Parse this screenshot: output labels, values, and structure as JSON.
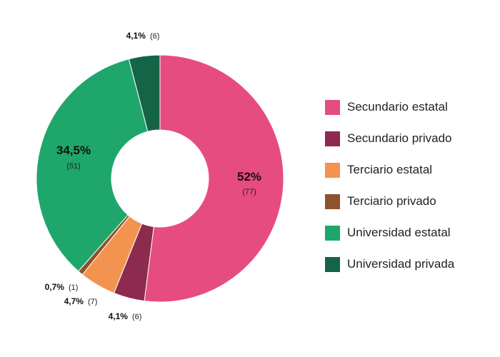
{
  "chart_data": {
    "type": "pie",
    "donut": true,
    "title": "",
    "legend_position": "right",
    "slices": [
      {
        "label": "Secundario estatal",
        "percent_label": "52%",
        "count_label": "(77)",
        "value": 77,
        "color": "#e64c7f"
      },
      {
        "label": "Secundario privado",
        "percent_label": "4,1%",
        "count_label": "(6)",
        "value": 6,
        "color": "#8c2b4f"
      },
      {
        "label": "Terciario estatal",
        "percent_label": "4,7%",
        "count_label": "(7)",
        "value": 7,
        "color": "#f29450"
      },
      {
        "label": "Terciario privado",
        "percent_label": "0,7%",
        "count_label": "(1)",
        "value": 1,
        "color": "#8e522d"
      },
      {
        "label": "Universidad estatal",
        "percent_label": "34,5%",
        "count_label": "(51)",
        "value": 51,
        "color": "#1fa66b"
      },
      {
        "label": "Universidad privada",
        "percent_label": "4,1%",
        "count_label": "(6)",
        "value": 6,
        "color": "#146548"
      }
    ]
  }
}
